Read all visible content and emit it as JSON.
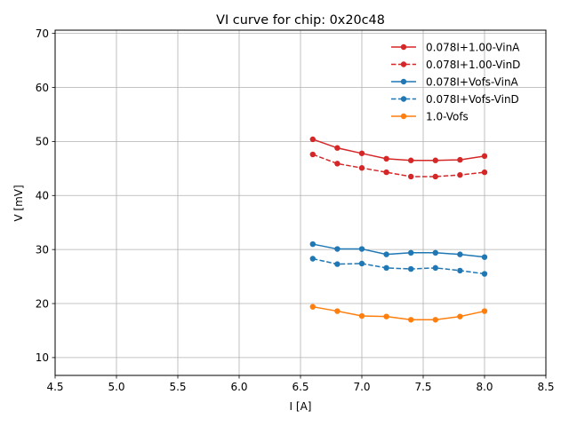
{
  "chart_data": {
    "type": "line",
    "title": "VI curve for chip: 0x20c48",
    "xlabel": "I [A]",
    "ylabel": "V [mV]",
    "xlim": [
      4.5,
      8.5
    ],
    "ylim": [
      6.7,
      70.6
    ],
    "xticks": [
      4.5,
      5.0,
      5.5,
      6.0,
      6.5,
      7.0,
      7.5,
      8.0,
      8.5
    ],
    "xtick_labels": [
      "4.5",
      "5.0",
      "5.5",
      "6.0",
      "6.5",
      "7.0",
      "7.5",
      "8.0",
      "8.5"
    ],
    "yticks": [
      10,
      20,
      30,
      40,
      50,
      60,
      70
    ],
    "ytick_labels": [
      "10",
      "20",
      "30",
      "40",
      "50",
      "60",
      "70"
    ],
    "grid": true,
    "legend_position": "top-right",
    "x": [
      6.6,
      6.8,
      7.0,
      7.2,
      7.4,
      7.6,
      7.8,
      8.0
    ],
    "series": [
      {
        "name": "0.078I+1.00-VinA",
        "color": "#d62728",
        "style": "solid",
        "values": [
          50.4,
          48.8,
          47.8,
          46.8,
          46.5,
          46.5,
          46.6,
          47.3
        ]
      },
      {
        "name": "0.078I+1.00-VinD",
        "color": "#d62728",
        "style": "dashed",
        "values": [
          47.6,
          45.9,
          45.1,
          44.3,
          43.5,
          43.5,
          43.8,
          44.3
        ]
      },
      {
        "name": "0.078I+Vofs-VinA",
        "color": "#1f77b4",
        "style": "solid",
        "values": [
          31.0,
          30.1,
          30.1,
          29.1,
          29.4,
          29.4,
          29.1,
          28.6
        ]
      },
      {
        "name": "0.078I+Vofs-VinD",
        "color": "#1f77b4",
        "style": "dashed",
        "values": [
          28.3,
          27.3,
          27.4,
          26.6,
          26.4,
          26.6,
          26.1,
          25.5
        ]
      },
      {
        "name": "1.0-Vofs",
        "color": "#ff7f0e",
        "style": "solid",
        "values": [
          19.4,
          18.6,
          17.7,
          17.6,
          17.0,
          17.0,
          17.6,
          18.6
        ]
      }
    ]
  }
}
